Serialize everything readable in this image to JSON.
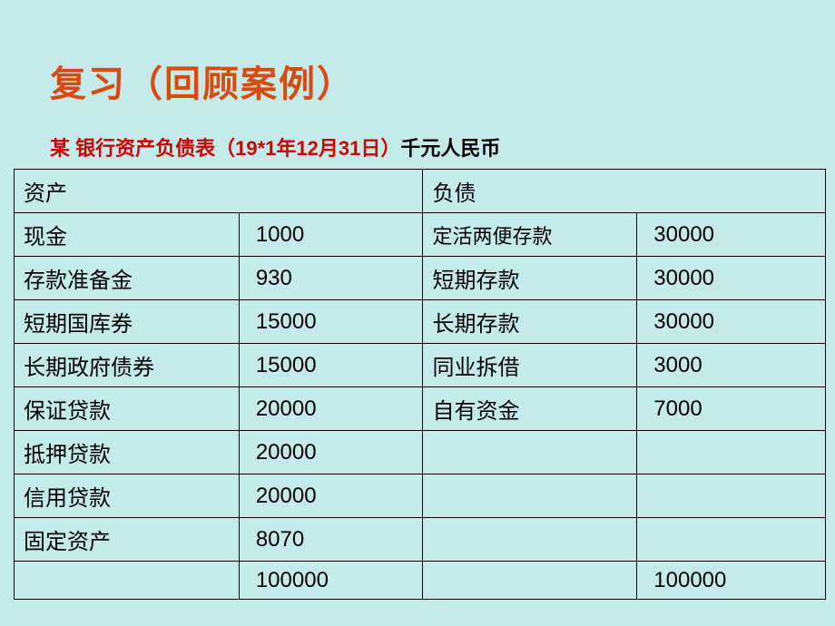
{
  "title": "复习（回顾案例）",
  "subtitle_red": "某 银行资产负债表（19*1年12月31日）",
  "subtitle_black": "千元人民币",
  "table": {
    "header_left": "资产",
    "header_right": "负债",
    "rows": [
      {
        "c1": "现金",
        "c2": "1000",
        "c3": "定活两便存款",
        "c4": "30000",
        "c3_smaller": true
      },
      {
        "c1": "存款准备金",
        "c2": "930",
        "c3": "短期存款",
        "c4": "30000"
      },
      {
        "c1": "短期国库券",
        "c2": "15000",
        "c3": "长期存款",
        "c4": "30000"
      },
      {
        "c1": "长期政府债券",
        "c2": "15000",
        "c3": "同业拆借",
        "c4": "3000"
      },
      {
        "c1": "保证贷款",
        "c2": "20000",
        "c3": "自有资金",
        "c4": "7000"
      },
      {
        "c1": "抵押贷款",
        "c2": "20000",
        "c3": "",
        "c4": ""
      },
      {
        "c1": "信用贷款",
        "c2": "20000",
        "c3": "",
        "c4": ""
      },
      {
        "c1": "固定资产",
        "c2": "8070",
        "c3": "",
        "c4": ""
      },
      {
        "c1": "",
        "c2": "100000",
        "c3": "",
        "c4": "100000"
      }
    ]
  }
}
